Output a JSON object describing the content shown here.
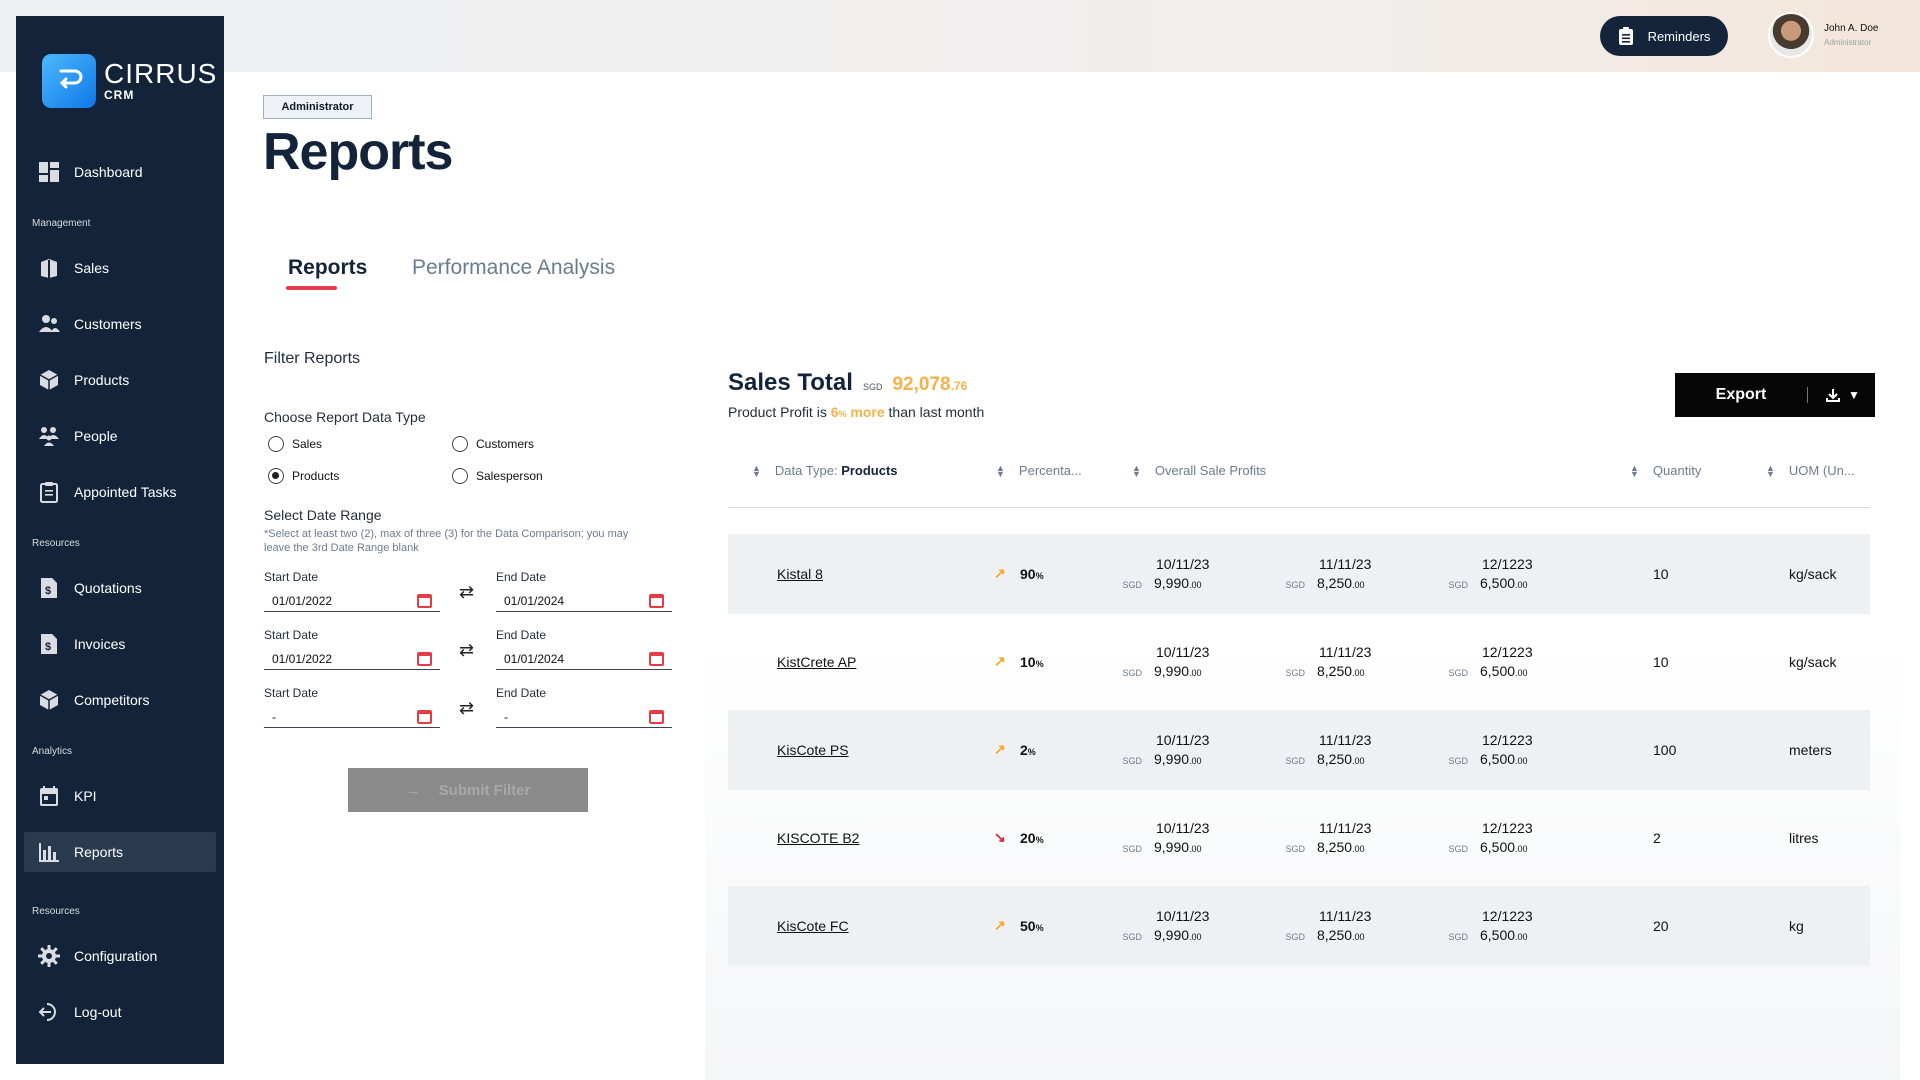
{
  "topbar": {
    "reminders_label": "Reminders",
    "user_name": "John A. Doe",
    "user_role": "Administrator"
  },
  "brand": {
    "name": "CIRRUS",
    "sub": "CRM"
  },
  "sidebar": {
    "dashboard": "Dashboard",
    "section_management": "Management",
    "sales": "Sales",
    "customers": "Customers",
    "products": "Products",
    "people": "People",
    "tasks": "Appointed Tasks",
    "section_resources": "Resources",
    "quotations": "Quotations",
    "invoices": "Invoices",
    "competitors": "Competitors",
    "section_analytics": "Analytics",
    "kpi": "KPI",
    "reports": "Reports",
    "section_resources2": "Resources",
    "configuration": "Configuration",
    "logout": "Log-out"
  },
  "header": {
    "badge": "Administrator",
    "title": "Reports",
    "tabs": [
      "Reports",
      "Performance Analysis"
    ]
  },
  "filter": {
    "title": "Filter Reports",
    "data_type_label": "Choose Report Data Type",
    "options": [
      "Sales",
      "Customers",
      "Products",
      "Salesperson"
    ],
    "selected": "Products",
    "range_label": "Select Date Range",
    "range_note": "*Select at least two (2), max of three (3) for the Data Comparison; you may leave the 3rd Date Range blank",
    "start_label": "Start Date",
    "end_label": "End Date",
    "ranges": [
      {
        "start": "01/01/2022",
        "end": "01/01/2024"
      },
      {
        "start": "01/01/2022",
        "end": "01/01/2024"
      },
      {
        "start": "-",
        "end": "-"
      }
    ],
    "submit_label": "Submit Filter"
  },
  "summary": {
    "title": "Sales Total",
    "currency": "SGD",
    "amount_main": "92,078",
    "amount_dec": ".76",
    "profit_prefix": "Product Profit is",
    "profit_pct": "6",
    "profit_pct_sign": "%",
    "profit_more": "more",
    "profit_suffix": "than last month",
    "export_label": "Export"
  },
  "table": {
    "col_type_prefix": "Data Type:",
    "col_type_value": "Products",
    "col_pct": "Percenta...",
    "col_profit": "Overall Sale Profits",
    "col_qty": "Quantity",
    "col_uom": "UOM (Un...",
    "rows": [
      {
        "name": "Kistal 8",
        "trend": "up",
        "pct": "90",
        "d1": "10/11/23",
        "v1": "9,990",
        "d2": "11/11/23",
        "v2": "8,250",
        "d3": "12/1223",
        "v3": "6,500",
        "qty": "10",
        "uom": "kg/sack"
      },
      {
        "name": "KistCrete AP",
        "trend": "up",
        "pct": "10",
        "d1": "10/11/23",
        "v1": "9,990",
        "d2": "11/11/23",
        "v2": "8,250",
        "d3": "12/1223",
        "v3": "6,500",
        "qty": "10",
        "uom": "kg/sack"
      },
      {
        "name": "KisCote PS",
        "trend": "up",
        "pct": "2",
        "d1": "10/11/23",
        "v1": "9,990",
        "d2": "11/11/23",
        "v2": "8,250",
        "d3": "12/1223",
        "v3": "6,500",
        "qty": "100",
        "uom": "meters"
      },
      {
        "name": "KISCOTE B2",
        "trend": "down",
        "pct": "20",
        "d1": "10/11/23",
        "v1": "9,990",
        "d2": "11/11/23",
        "v2": "8,250",
        "d3": "12/1223",
        "v3": "6,500",
        "qty": "2",
        "uom": "litres"
      },
      {
        "name": "KisCote FC",
        "trend": "up",
        "pct": "50",
        "d1": "10/11/23",
        "v1": "9,990",
        "d2": "11/11/23",
        "v2": "8,250",
        "d3": "12/1223",
        "v3": "6,500",
        "qty": "20",
        "uom": "kg"
      }
    ],
    "currency": "SGD",
    "decimals": ".00",
    "pct_sign": "%"
  },
  "colors": {
    "sidebar": "#13243a",
    "accent_red": "#e53c45",
    "accent_amber": "#f5b14a",
    "trend_up": "#f5a623",
    "trend_down": "#d7263d"
  }
}
